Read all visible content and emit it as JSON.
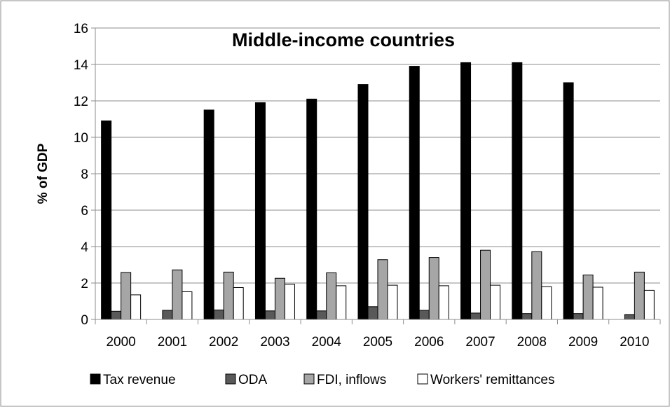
{
  "chart_data": {
    "type": "bar",
    "title": "Middle-income countries",
    "xlabel": "",
    "ylabel": "% of GDP",
    "ylim": [
      0,
      16
    ],
    "yticks": [
      0,
      2,
      4,
      6,
      8,
      10,
      12,
      14,
      16
    ],
    "grid": true,
    "legend_position": "bottom",
    "categories": [
      "2000",
      "2001",
      "2002",
      "2003",
      "2004",
      "2005",
      "2006",
      "2007",
      "2008",
      "2009",
      "2010"
    ],
    "series": [
      {
        "name": "Tax revenue",
        "color": "#000000",
        "values": [
          10.9,
          null,
          11.5,
          11.9,
          12.1,
          12.9,
          13.9,
          14.1,
          14.1,
          13.0,
          null
        ]
      },
      {
        "name": "ODA",
        "color": "#595959",
        "values": [
          0.45,
          0.5,
          0.52,
          0.47,
          0.47,
          0.7,
          0.5,
          0.35,
          0.32,
          0.32,
          0.27
        ]
      },
      {
        "name": "FDI, inflows",
        "color": "#a6a6a6",
        "values": [
          2.58,
          2.72,
          2.6,
          2.26,
          2.56,
          3.28,
          3.4,
          3.8,
          3.72,
          2.44,
          2.6
        ]
      },
      {
        "name": "Workers' remittances",
        "color": "#ffffff",
        "values": [
          1.35,
          1.52,
          1.75,
          1.93,
          1.85,
          1.88,
          1.85,
          1.88,
          1.8,
          1.77,
          1.6
        ]
      }
    ]
  }
}
